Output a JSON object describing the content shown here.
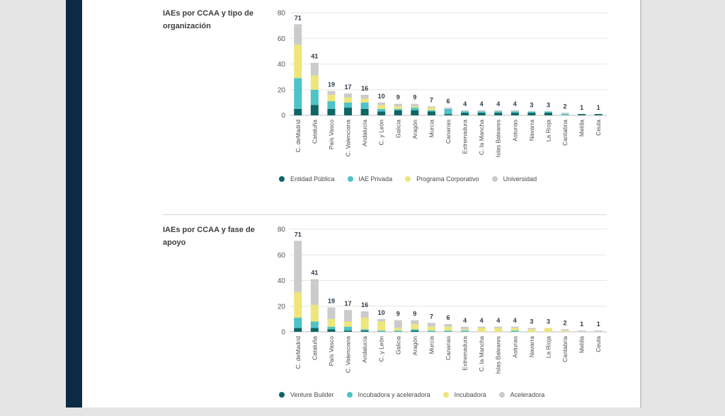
{
  "colors": {
    "teal_dark": "#0e6663",
    "teal": "#4ec3c8",
    "yellow": "#ede67b",
    "gray": "#cbcbcb",
    "text_dark": "#3d3d3d",
    "grid": "#e6e6e6"
  },
  "sections": [
    {
      "title": "IAEs por CCAA y tipo de organización",
      "chart_data": {
        "type": "bar",
        "stacked": true,
        "title": "IAEs por CCAA y tipo de organización",
        "ylim": [
          0,
          80
        ],
        "yticks": [
          0,
          20,
          40,
          60,
          80
        ],
        "categories": [
          "C. deMadrid",
          "Cataluña",
          "País Vasco",
          "C. Valenciana",
          "Andalucía",
          "C. y León",
          "Galicia",
          "Aragón",
          "Murcia",
          "Canarias",
          "Extremadura",
          "C. la Mancha",
          "Islas Baleares",
          "Asturias",
          "Navarra",
          "La Rioja",
          "Cantabria",
          "Melilla",
          "Ceuta"
        ],
        "totals": [
          71,
          41,
          19,
          17,
          16,
          10,
          9,
          9,
          7,
          6,
          4,
          4,
          4,
          4,
          3,
          3,
          2,
          1,
          1
        ],
        "series": [
          {
            "name": "Entidad Pública",
            "color": "#0e6663",
            "values": [
              5,
              8,
              5,
              6,
              5,
              3,
              4,
              4,
              3,
              1,
              2,
              2,
              2,
              2,
              2,
              2,
              0,
              1,
              1
            ]
          },
          {
            "name": "IAE Privada",
            "color": "#4ec3c8",
            "values": [
              24,
              12,
              6,
              4,
              5,
              2,
              1,
              2,
              1,
              4,
              1,
              1,
              1,
              1,
              1,
              1,
              1,
              0,
              0
            ]
          },
          {
            "name": "Programa Corporativo",
            "color": "#ede67b",
            "values": [
              26,
              11,
              5,
              4,
              3,
              3,
              2,
              1,
              2,
              0,
              0,
              0,
              0,
              0,
              0,
              0,
              0,
              0,
              0
            ]
          },
          {
            "name": "Universidad",
            "color": "#cbcbcb",
            "values": [
              16,
              10,
              3,
              3,
              3,
              2,
              2,
              2,
              1,
              1,
              1,
              1,
              1,
              1,
              0,
              0,
              1,
              0,
              0
            ]
          }
        ],
        "legend_position": "bottom"
      }
    },
    {
      "title": "IAEs por CCAA y fase de apoyo",
      "chart_data": {
        "type": "bar",
        "stacked": true,
        "title": "IAEs por CCAA y fase de apoyo",
        "ylim": [
          0,
          80
        ],
        "yticks": [
          0,
          20,
          40,
          60,
          80
        ],
        "categories": [
          "C. deMadrid",
          "Cataluña",
          "País Vasco",
          "C. Valenciana",
          "Andalucía",
          "C. y León",
          "Galicia",
          "Aragón",
          "Murcia",
          "Canarias",
          "Extremadura",
          "C. la Mancha",
          "Islas Baleares",
          "Asturias",
          "Navarra",
          "La Rioja",
          "Cantabria",
          "Melilla",
          "Ceuta"
        ],
        "totals": [
          71,
          41,
          19,
          17,
          16,
          10,
          9,
          9,
          7,
          6,
          4,
          4,
          4,
          4,
          3,
          3,
          2,
          1,
          1
        ],
        "series": [
          {
            "name": "Venture Builder",
            "color": "#0e6663",
            "values": [
              3,
              3,
              2,
              1,
              1,
              0,
              0,
              1,
              0,
              0,
              0,
              0,
              0,
              0,
              0,
              0,
              0,
              0,
              0
            ]
          },
          {
            "name": "Incubadora y aceleradora",
            "color": "#4ec3c8",
            "values": [
              8,
              5,
              2,
              3,
              1,
              1,
              1,
              1,
              1,
              1,
              1,
              0,
              0,
              1,
              0,
              0,
              0,
              0,
              0
            ]
          },
          {
            "name": "Incubadora",
            "color": "#ede67b",
            "values": [
              20,
              13,
              6,
              4,
              9,
              7,
              2,
              4,
              3,
              3,
              1,
              3,
              3,
              2,
              2,
              3,
              1,
              0,
              0
            ]
          },
          {
            "name": "Aceleradora",
            "color": "#cbcbcb",
            "values": [
              40,
              20,
              9,
              9,
              5,
              2,
              6,
              3,
              3,
              2,
              2,
              1,
              1,
              1,
              1,
              0,
              1,
              1,
              1
            ]
          }
        ],
        "legend_position": "bottom"
      }
    }
  ]
}
